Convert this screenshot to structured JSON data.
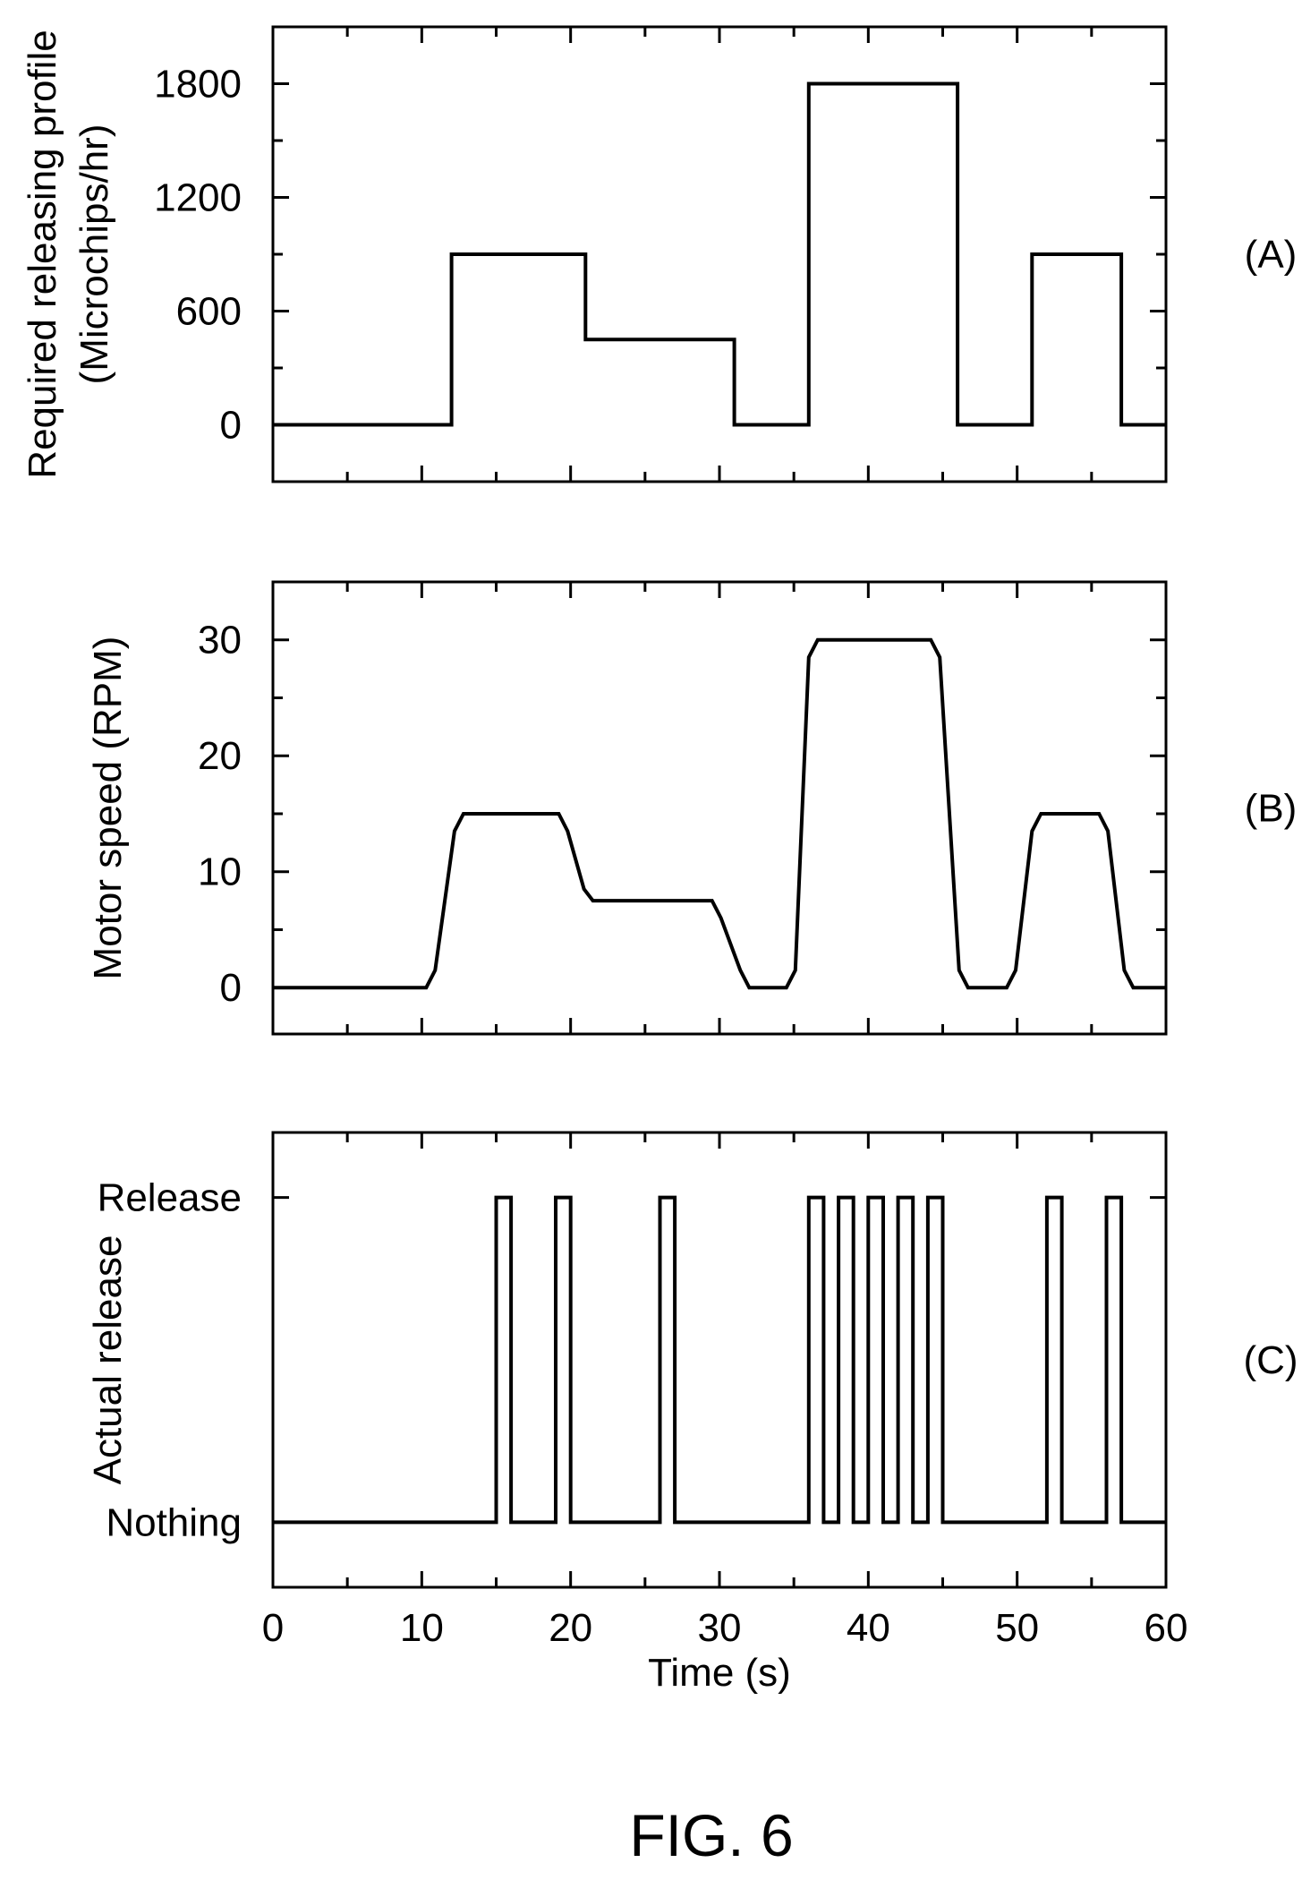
{
  "figure_caption": "FIG. 6",
  "chart_data": [
    {
      "type": "line",
      "panel_label": "(A)",
      "ylabel": [
        "Required releasing profile",
        "(Microchips/hr)"
      ],
      "xlim": [
        0,
        60
      ],
      "ylim": [
        -300,
        2100
      ],
      "yticks": [
        0,
        600,
        1200,
        1800
      ],
      "ytick_labels": [
        "0",
        "600",
        "1200",
        "1800"
      ],
      "grid": false,
      "series": [
        {
          "x": [
            0,
            12,
            12,
            21,
            21,
            31,
            31,
            36,
            36,
            46,
            46,
            51,
            51,
            57,
            57,
            60
          ],
          "y": [
            0,
            0,
            900,
            900,
            450,
            450,
            0,
            0,
            1800,
            1800,
            0,
            0,
            900,
            900,
            0,
            0
          ]
        }
      ]
    },
    {
      "type": "line",
      "panel_label": "(B)",
      "ylabel": [
        "Motor speed (RPM)"
      ],
      "xlim": [
        0,
        60
      ],
      "ylim": [
        -4,
        35
      ],
      "yticks": [
        0,
        10,
        20,
        30
      ],
      "ytick_labels": [
        "0",
        "10",
        "20",
        "30"
      ],
      "grid": false,
      "series": [
        {
          "x": [
            0,
            10.3,
            10.9,
            12.2,
            12.8,
            19.2,
            19.8,
            20.9,
            21.5,
            29.5,
            30.1,
            31.4,
            32,
            34.5,
            35.1,
            36,
            36.6,
            44.2,
            44.8,
            46.1,
            46.7,
            49.3,
            49.9,
            51,
            51.6,
            55.5,
            56.1,
            57.2,
            57.8,
            60
          ],
          "y": [
            0,
            0,
            1.5,
            13.5,
            15,
            15,
            13.5,
            8.5,
            7.5,
            7.5,
            6,
            1.5,
            0,
            0,
            1.5,
            28.5,
            30,
            30,
            28.5,
            1.5,
            0,
            0,
            1.5,
            13.5,
            15,
            15,
            13.5,
            1.5,
            0,
            0
          ]
        }
      ]
    },
    {
      "type": "line",
      "panel_label": "(C)",
      "ylabel": [
        "Actual release"
      ],
      "xlabel": "Time (s)",
      "xlim": [
        0,
        60
      ],
      "xticks": [
        0,
        10,
        20,
        30,
        40,
        50,
        60
      ],
      "xtick_labels": [
        "0",
        "10",
        "20",
        "30",
        "40",
        "50",
        "60"
      ],
      "ylim": [
        -0.2,
        1.2
      ],
      "yticks": [
        0,
        1
      ],
      "ytick_labels": [
        "Nothing",
        "Release"
      ],
      "grid": false,
      "series": [
        {
          "x": [
            0,
            15,
            15,
            16,
            16,
            19,
            19,
            20,
            20,
            26,
            26,
            27,
            27,
            36,
            36,
            37,
            37,
            38,
            38,
            39,
            39,
            40,
            40,
            41,
            41,
            42,
            42,
            43,
            43,
            44,
            44,
            45,
            45,
            52,
            52,
            53,
            53,
            56,
            56,
            57,
            57,
            60
          ],
          "y": [
            0,
            0,
            1,
            1,
            0,
            0,
            1,
            1,
            0,
            0,
            1,
            1,
            0,
            0,
            1,
            1,
            0,
            0,
            1,
            1,
            0,
            0,
            1,
            1,
            0,
            0,
            1,
            1,
            0,
            0,
            1,
            1,
            0,
            0,
            1,
            1,
            0,
            0,
            1,
            1,
            0,
            0
          ]
        }
      ]
    }
  ]
}
